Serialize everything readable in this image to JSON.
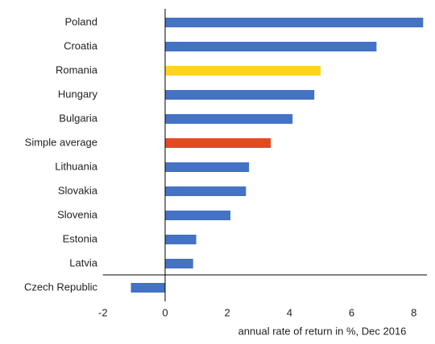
{
  "chart_data": {
    "type": "bar",
    "orientation": "horizontal",
    "x_label": "annual rate of return in %, Dec 2016",
    "categories": [
      "Poland",
      "Croatia",
      "Romania",
      "Hungary",
      "Bulgaria",
      "Simple average",
      "Lithuania",
      "Slovakia",
      "Slovenia",
      "Estonia",
      "Latvia",
      "Czech Republic"
    ],
    "values": [
      8.3,
      6.8,
      5.0,
      4.8,
      4.1,
      3.4,
      2.7,
      2.6,
      2.1,
      1.0,
      0.9,
      -1.1
    ],
    "colors": [
      "#4472c4",
      "#4472c4",
      "#ffd320",
      "#4472c4",
      "#4472c4",
      "#e34a22",
      "#4472c4",
      "#4472c4",
      "#4472c4",
      "#4472c4",
      "#4472c4",
      "#4472c4"
    ],
    "xlim": [
      -2,
      8.5
    ],
    "xticks": [
      -2,
      0,
      2,
      4,
      6,
      8
    ],
    "grid": false
  }
}
